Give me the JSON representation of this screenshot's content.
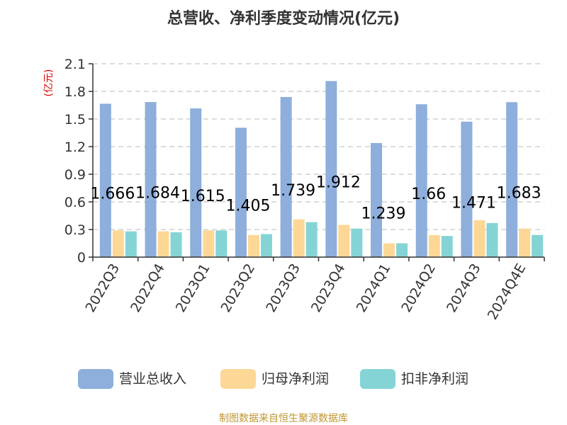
{
  "chart_data": {
    "type": "bar",
    "title": "总营收、净利季度变动情况(亿元)",
    "ylabel": "(亿元)",
    "ylim": [
      0,
      2.1
    ],
    "yticks": [
      "0",
      "0.3",
      "0.6",
      "0.9",
      "1.2",
      "1.5",
      "1.8",
      "2.1"
    ],
    "grid": true,
    "legend_position": "bottom",
    "categories": [
      "2022Q3",
      "2022Q4",
      "2023Q1",
      "2023Q2",
      "2023Q3",
      "2023Q4",
      "2024Q1",
      "2024Q2",
      "2024Q3",
      "2024Q4E"
    ],
    "series": [
      {
        "name": "营业总收入",
        "color": "#8eaedb",
        "values": [
          1.666,
          1.684,
          1.615,
          1.405,
          1.739,
          1.912,
          1.239,
          1.66,
          1.471,
          1.683
        ],
        "labels": [
          "1.666",
          "1.684",
          "1.615",
          "1.405",
          "1.739",
          "1.912",
          "1.239",
          "1.66",
          "1.471",
          "1.683"
        ]
      },
      {
        "name": "归母净利润",
        "color": "#fdd796",
        "values": [
          0.29,
          0.28,
          0.29,
          0.24,
          0.41,
          0.35,
          0.15,
          0.24,
          0.4,
          0.31
        ]
      },
      {
        "name": "扣非净利润",
        "color": "#85d4d5",
        "values": [
          0.28,
          0.27,
          0.29,
          0.25,
          0.38,
          0.31,
          0.15,
          0.23,
          0.37,
          0.24
        ]
      }
    ],
    "source": "制图数据来自恒生聚源数据库"
  }
}
